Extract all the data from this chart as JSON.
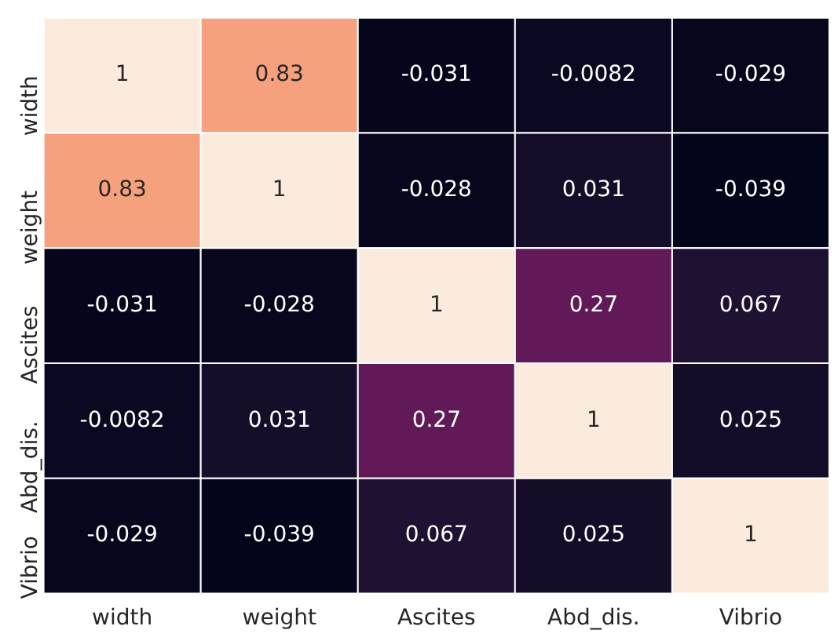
{
  "chart_data": {
    "type": "heatmap",
    "categories": [
      "width",
      "weight",
      "Ascites",
      "Abd_dis.",
      "Vibrio"
    ],
    "y_categories": [
      "width",
      "weight",
      "Ascites",
      "Abd_dis.",
      "Vibrio"
    ],
    "cells": [
      [
        1,
        0.83,
        -0.031,
        -0.0082,
        -0.029
      ],
      [
        0.83,
        1,
        -0.028,
        0.031,
        -0.039
      ],
      [
        -0.031,
        -0.028,
        1,
        0.27,
        0.067
      ],
      [
        -0.0082,
        0.031,
        0.27,
        1,
        0.025
      ],
      [
        -0.029,
        -0.039,
        0.067,
        0.025,
        1
      ]
    ],
    "data_labels": true
  }
}
